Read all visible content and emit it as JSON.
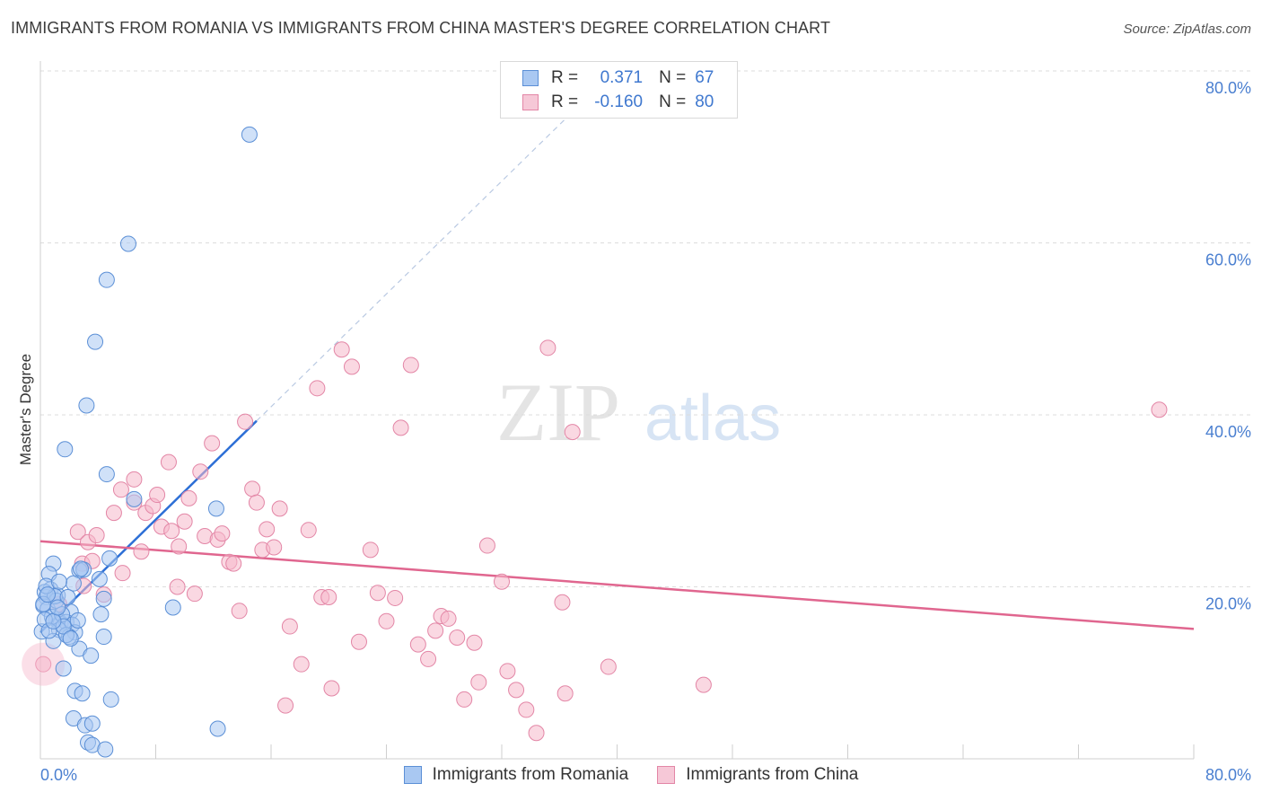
{
  "header": {
    "title": "IMMIGRANTS FROM ROMANIA VS IMMIGRANTS FROM CHINA MASTER'S DEGREE CORRELATION CHART",
    "source": "Source: ZipAtlas.com"
  },
  "watermark": {
    "zip": "ZIP",
    "atlas": "atlas"
  },
  "legend": {
    "romania": {
      "r_label": "R =",
      "r_value": "0.371",
      "n_label": "N =",
      "n_value": "67"
    },
    "china": {
      "r_label": "R =",
      "r_value": "-0.160",
      "n_label": "N =",
      "n_value": "80"
    }
  },
  "colors": {
    "romania_fill": "#a9c8f2",
    "romania_stroke": "#5b8fd6",
    "romania_line": "#2d6fd6",
    "china_fill": "#f6b8cb",
    "china_stroke": "#e386a6",
    "china_line": "#e0668f",
    "tick_text": "#4a7fd0"
  },
  "chart_data": {
    "type": "scatter",
    "title": "IMMIGRANTS FROM ROMANIA VS IMMIGRANTS FROM CHINA MASTER'S DEGREE CORRELATION CHART",
    "xlabel": "",
    "ylabel": "Master's Degree",
    "xlim": [
      0,
      80
    ],
    "ylim": [
      0,
      80
    ],
    "x_tick_labels": [
      "0.0%",
      "80.0%"
    ],
    "y_ticks": [
      20,
      40,
      60,
      80
    ],
    "y_tick_labels": [
      "20.0%",
      "40.0%",
      "60.0%",
      "80.0%"
    ],
    "grid": true,
    "series": [
      {
        "name": "Immigrants from Romania",
        "r": 0.371,
        "n": 67,
        "trend": {
          "x0": 0,
          "y0": 14.7,
          "x1": 15,
          "y1": 39.3,
          "extended_to_x": 38.5
        },
        "points": [
          [
            14.5,
            72.6
          ],
          [
            6.1,
            59.9
          ],
          [
            4.6,
            55.7
          ],
          [
            3.8,
            48.5
          ],
          [
            3.2,
            41.1
          ],
          [
            1.7,
            36.0
          ],
          [
            4.6,
            33.1
          ],
          [
            6.5,
            30.2
          ],
          [
            12.2,
            29.1
          ],
          [
            4.8,
            23.3
          ],
          [
            2.7,
            21.9
          ],
          [
            0.9,
            22.7
          ],
          [
            0.6,
            21.5
          ],
          [
            3.0,
            22.0
          ],
          [
            2.3,
            20.4
          ],
          [
            4.1,
            20.9
          ],
          [
            0.7,
            19.7
          ],
          [
            0.4,
            18.8
          ],
          [
            1.2,
            19.0
          ],
          [
            4.4,
            18.6
          ],
          [
            0.2,
            17.8
          ],
          [
            0.5,
            17.4
          ],
          [
            2.1,
            17.1
          ],
          [
            4.2,
            16.8
          ],
          [
            9.2,
            17.6
          ],
          [
            1.1,
            16.2
          ],
          [
            1.4,
            15.7
          ],
          [
            1.8,
            15.9
          ],
          [
            2.2,
            15.6
          ],
          [
            1.3,
            15.0
          ],
          [
            2.4,
            14.7
          ],
          [
            0.1,
            14.8
          ],
          [
            0.9,
            13.7
          ],
          [
            2.0,
            14.2
          ],
          [
            4.4,
            14.2
          ],
          [
            2.7,
            12.8
          ],
          [
            3.5,
            12.0
          ],
          [
            1.6,
            10.5
          ],
          [
            2.4,
            7.9
          ],
          [
            2.9,
            7.6
          ],
          [
            4.9,
            6.9
          ],
          [
            2.3,
            4.7
          ],
          [
            3.1,
            3.9
          ],
          [
            3.6,
            4.1
          ],
          [
            12.3,
            3.5
          ],
          [
            3.3,
            1.9
          ],
          [
            3.6,
            1.6
          ],
          [
            4.5,
            1.1
          ],
          [
            0.3,
            19.4
          ],
          [
            1.1,
            18.4
          ],
          [
            0.8,
            16.5
          ],
          [
            1.5,
            16.8
          ],
          [
            2.6,
            16.1
          ],
          [
            0.3,
            16.2
          ],
          [
            1.0,
            18.9
          ],
          [
            1.9,
            18.8
          ],
          [
            0.6,
            14.9
          ],
          [
            1.8,
            14.4
          ],
          [
            2.8,
            22.1
          ],
          [
            0.4,
            20.1
          ],
          [
            1.3,
            20.6
          ],
          [
            0.2,
            18.0
          ],
          [
            1.6,
            15.4
          ],
          [
            0.9,
            16.0
          ],
          [
            2.1,
            14.0
          ],
          [
            0.5,
            19.1
          ],
          [
            1.2,
            17.6
          ]
        ]
      },
      {
        "name": "Immigrants from China",
        "r": -0.16,
        "n": 80,
        "trend": {
          "x0": 0,
          "y0": 25.3,
          "x1": 80,
          "y1": 15.1
        },
        "points": [
          [
            0.2,
            11.0
          ],
          [
            1.3,
            18.0
          ],
          [
            2.6,
            26.4
          ],
          [
            3.3,
            25.2
          ],
          [
            3.9,
            26.0
          ],
          [
            2.9,
            22.7
          ],
          [
            3.6,
            23.0
          ],
          [
            4.4,
            19.1
          ],
          [
            5.1,
            28.6
          ],
          [
            5.6,
            31.3
          ],
          [
            5.7,
            21.6
          ],
          [
            6.5,
            29.8
          ],
          [
            6.5,
            32.5
          ],
          [
            7.0,
            24.1
          ],
          [
            7.3,
            28.6
          ],
          [
            7.8,
            29.4
          ],
          [
            8.1,
            30.7
          ],
          [
            8.4,
            27.0
          ],
          [
            8.9,
            34.5
          ],
          [
            9.1,
            26.5
          ],
          [
            9.6,
            24.7
          ],
          [
            10.0,
            27.6
          ],
          [
            10.3,
            30.3
          ],
          [
            10.7,
            19.2
          ],
          [
            11.1,
            33.4
          ],
          [
            11.4,
            25.9
          ],
          [
            11.9,
            36.7
          ],
          [
            12.3,
            25.5
          ],
          [
            12.6,
            26.2
          ],
          [
            13.1,
            22.9
          ],
          [
            13.4,
            22.7
          ],
          [
            13.8,
            17.2
          ],
          [
            14.2,
            39.2
          ],
          [
            14.7,
            31.4
          ],
          [
            15.0,
            29.8
          ],
          [
            15.4,
            24.3
          ],
          [
            15.7,
            26.7
          ],
          [
            16.2,
            24.6
          ],
          [
            16.6,
            29.1
          ],
          [
            17.3,
            15.4
          ],
          [
            18.1,
            11.0
          ],
          [
            18.6,
            26.6
          ],
          [
            19.2,
            43.1
          ],
          [
            19.5,
            18.8
          ],
          [
            20.0,
            18.8
          ],
          [
            20.2,
            8.2
          ],
          [
            20.9,
            47.6
          ],
          [
            21.6,
            45.6
          ],
          [
            22.1,
            13.6
          ],
          [
            22.9,
            24.3
          ],
          [
            23.4,
            19.3
          ],
          [
            24.0,
            16.0
          ],
          [
            24.6,
            18.7
          ],
          [
            25.7,
            45.8
          ],
          [
            26.2,
            13.3
          ],
          [
            26.9,
            11.6
          ],
          [
            27.4,
            14.9
          ],
          [
            27.8,
            16.6
          ],
          [
            28.3,
            16.3
          ],
          [
            28.9,
            14.1
          ],
          [
            29.4,
            6.9
          ],
          [
            30.1,
            13.5
          ],
          [
            30.4,
            8.9
          ],
          [
            31.0,
            24.8
          ],
          [
            32.0,
            20.6
          ],
          [
            32.4,
            10.2
          ],
          [
            33.0,
            8.0
          ],
          [
            33.7,
            5.7
          ],
          [
            34.4,
            3.0
          ],
          [
            35.2,
            47.8
          ],
          [
            36.2,
            18.2
          ],
          [
            36.9,
            38.0
          ],
          [
            36.4,
            7.6
          ],
          [
            39.4,
            10.7
          ],
          [
            46.0,
            8.6
          ],
          [
            77.6,
            40.6
          ],
          [
            17.0,
            6.2
          ],
          [
            25.0,
            38.5
          ],
          [
            9.5,
            20.0
          ],
          [
            3.0,
            20.1
          ]
        ]
      }
    ]
  },
  "bottom_legend": {
    "romania": "Immigrants from Romania",
    "china": "Immigrants from China"
  }
}
